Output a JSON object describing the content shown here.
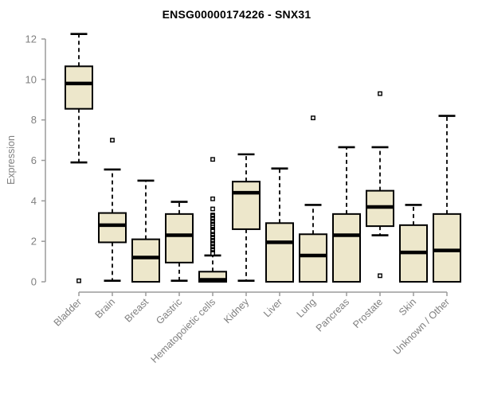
{
  "chart_data": {
    "type": "boxplot",
    "title": "ENSG00000174226 - SNX31",
    "ylabel": "Expression",
    "xlabel": "",
    "yticks": [
      0,
      2,
      4,
      6,
      8,
      10,
      12
    ],
    "ylim": [
      0,
      12.3
    ],
    "grid": false,
    "legend": "none",
    "box_fill": "#EDE7CB",
    "box_border": "#000000",
    "axis_color": "#9A9A9A",
    "tick_text_color": "#7F7F7F",
    "title_color": "#000000",
    "categories": [
      "Bladder",
      "Brain",
      "Breast",
      "Gastric",
      "Hematopoietic cells",
      "Kidney",
      "Liver",
      "Lung",
      "Pancreas",
      "Prostate",
      "Skin",
      "Unknown / Other"
    ],
    "boxes": [
      {
        "label": "Bladder",
        "whisker_low": 5.9,
        "q1": 8.55,
        "median": 9.8,
        "q3": 10.65,
        "whisker_high": 12.25,
        "outliers": [
          0.05
        ]
      },
      {
        "label": "Brain",
        "whisker_low": 0.05,
        "q1": 1.95,
        "median": 2.8,
        "q3": 3.4,
        "whisker_high": 5.55,
        "outliers": [
          7.0
        ]
      },
      {
        "label": "Breast",
        "whisker_low": null,
        "q1": 0,
        "median": 1.2,
        "q3": 2.1,
        "whisker_high": 5.0,
        "outliers": []
      },
      {
        "label": "Gastric",
        "whisker_low": 0.05,
        "q1": 0.95,
        "median": 2.3,
        "q3": 3.35,
        "whisker_high": 3.95,
        "outliers": []
      },
      {
        "label": "Hematopoietic cells",
        "whisker_low": null,
        "q1": 0,
        "median": 0.1,
        "q3": 0.5,
        "whisker_high": 1.3,
        "outliers": [
          6.05,
          4.1,
          3.6,
          3.3,
          3.25,
          3.15,
          3.1,
          3.0,
          2.95,
          2.85,
          2.8,
          2.7,
          2.6,
          2.55,
          2.5,
          2.35,
          2.3,
          2.2,
          2.15,
          2.05,
          2.0,
          1.9,
          1.85,
          1.75,
          1.7,
          1.6,
          1.55,
          1.45,
          1.4
        ]
      },
      {
        "label": "Kidney",
        "whisker_low": 0.05,
        "q1": 2.6,
        "median": 4.4,
        "q3": 4.95,
        "whisker_high": 6.3,
        "outliers": []
      },
      {
        "label": "Liver",
        "whisker_low": null,
        "q1": 0,
        "median": 1.95,
        "q3": 2.9,
        "whisker_high": 5.6,
        "outliers": []
      },
      {
        "label": "Lung",
        "whisker_low": null,
        "q1": 0,
        "median": 1.3,
        "q3": 2.35,
        "whisker_high": 3.8,
        "outliers": [
          8.1
        ]
      },
      {
        "label": "Pancreas",
        "whisker_low": null,
        "q1": 0,
        "median": 2.3,
        "q3": 3.35,
        "whisker_high": 6.65,
        "outliers": []
      },
      {
        "label": "Prostate",
        "whisker_low": 2.3,
        "q1": 2.75,
        "median": 3.7,
        "q3": 4.5,
        "whisker_high": 6.65,
        "outliers": [
          9.3,
          0.3
        ]
      },
      {
        "label": "Skin",
        "whisker_low": null,
        "q1": 0,
        "median": 1.45,
        "q3": 2.8,
        "whisker_high": 3.8,
        "outliers": []
      },
      {
        "label": "Unknown / Other",
        "whisker_low": null,
        "q1": 0,
        "median": 1.55,
        "q3": 3.35,
        "whisker_high": 8.2,
        "outliers": []
      }
    ]
  }
}
